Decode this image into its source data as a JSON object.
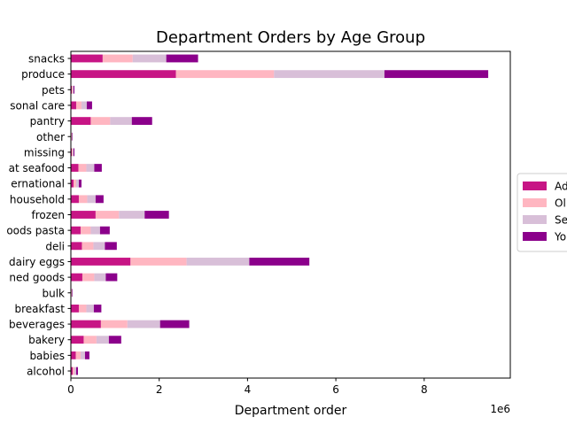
{
  "chart_data": {
    "type": "bar",
    "orientation": "horizontal",
    "stacked": true,
    "title": "Department Orders by Age Group",
    "xlabel": "Department order",
    "ylabel": "",
    "x_offset_label": "1e6",
    "xlim": [
      0,
      9.95
    ],
    "x_ticks": [
      0,
      2,
      4,
      6,
      8
    ],
    "x_tick_labels": [
      "0",
      "2",
      "4",
      "6",
      "8"
    ],
    "grid": false,
    "legend_position": "center-right",
    "categories": [
      "alcohol",
      "babies",
      "bakery",
      "beverages",
      "breakfast",
      "bulk",
      "canned goods",
      "dairy eggs",
      "deli",
      "dry goods pasta",
      "frozen",
      "household",
      "international",
      "meat seafood",
      "missing",
      "other",
      "pantry",
      "personal care",
      "pets",
      "produce",
      "snacks"
    ],
    "category_tick_labels": [
      "alcohol",
      "babies",
      "bakery",
      "beverages",
      "breakfast",
      "bulk",
      "ned goods",
      "dairy eggs",
      "deli",
      "oods pasta",
      "frozen",
      "household",
      "ernational",
      "at seafood",
      "missing",
      "other",
      "pantry",
      "sonal care",
      "pets",
      "produce",
      "snacks"
    ],
    "series": [
      {
        "name": "Ad",
        "color": "#c71585",
        "values": [
          0.04,
          0.11,
          0.29,
          0.68,
          0.18,
          0.01,
          0.26,
          1.35,
          0.25,
          0.22,
          0.56,
          0.18,
          0.06,
          0.17,
          0.02,
          0.01,
          0.45,
          0.12,
          0.02,
          2.38,
          0.72
        ]
      },
      {
        "name": "Ol",
        "color": "#ffb6c1",
        "values": [
          0.04,
          0.11,
          0.29,
          0.6,
          0.17,
          0.01,
          0.27,
          1.27,
          0.26,
          0.23,
          0.53,
          0.19,
          0.06,
          0.18,
          0.02,
          0.01,
          0.44,
          0.12,
          0.02,
          2.22,
          0.68
        ]
      },
      {
        "name": "Se",
        "color": "#d8bfd8",
        "values": [
          0.04,
          0.1,
          0.28,
          0.74,
          0.17,
          0.01,
          0.26,
          1.42,
          0.26,
          0.21,
          0.58,
          0.19,
          0.06,
          0.18,
          0.02,
          0.01,
          0.49,
          0.12,
          0.02,
          2.5,
          0.76
        ]
      },
      {
        "name": "Yo",
        "color": "#8b008b",
        "values": [
          0.04,
          0.1,
          0.28,
          0.66,
          0.17,
          0.01,
          0.26,
          1.36,
          0.27,
          0.22,
          0.55,
          0.18,
          0.06,
          0.17,
          0.02,
          0.01,
          0.46,
          0.12,
          0.02,
          2.35,
          0.72
        ]
      }
    ]
  }
}
